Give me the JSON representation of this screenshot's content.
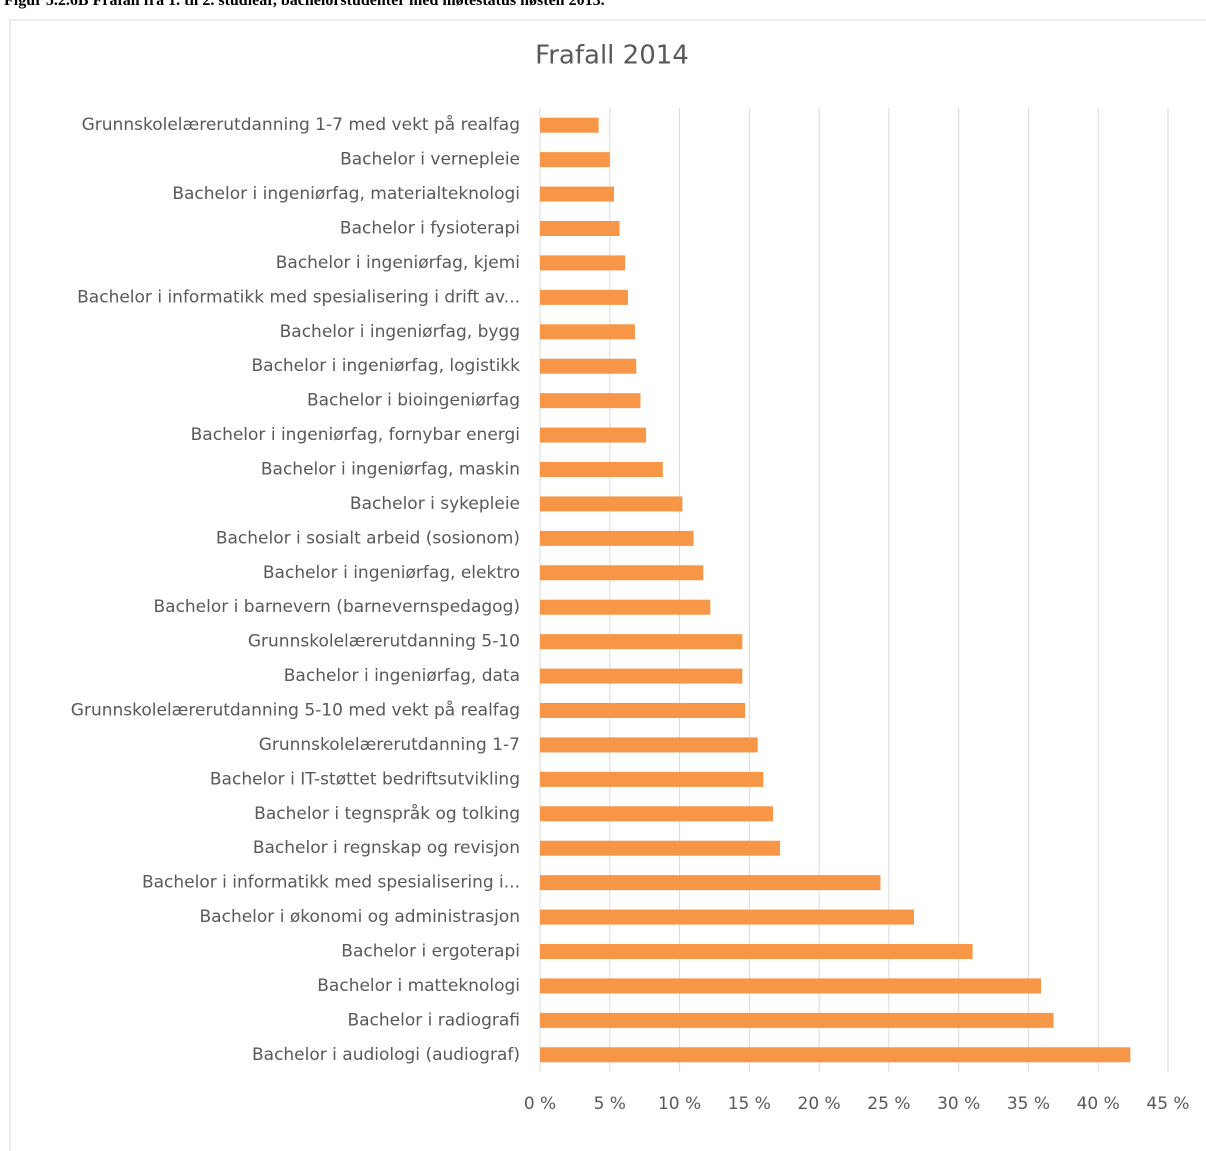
{
  "caption": "Figur 5.2.6B Frafall fra 1. til 2. studieår, bachelorstudenter med møtestatus høsten 2013.",
  "chart_data": {
    "type": "bar",
    "orientation": "horizontal",
    "title": "Frafall 2014",
    "categories": [
      "Grunnskolelærerutdanning 1-7 med vekt på realfag",
      "Bachelor i vernepleie",
      "Bachelor i ingeniørfag, materialteknologi",
      "Bachelor i fysioterapi",
      "Bachelor i ingeniørfag, kjemi",
      "Bachelor i informatikk med spesialisering i drift av...",
      "Bachelor i ingeniørfag, bygg",
      "Bachelor i ingeniørfag, logistikk",
      "Bachelor i bioingeniørfag",
      "Bachelor i ingeniørfag, fornybar energi",
      "Bachelor i ingeniørfag, maskin",
      "Bachelor i sykepleie",
      "Bachelor i sosialt arbeid (sosionom)",
      "Bachelor i ingeniørfag, elektro",
      "Bachelor i barnevern (barnevernspedagog)",
      "Grunnskolelærerutdanning 5-10",
      "Bachelor i ingeniørfag, data",
      "Grunnskolelærerutdanning 5-10 med vekt på realfag",
      "Grunnskolelærerutdanning 1-7",
      "Bachelor i IT-støttet bedriftsutvikling",
      "Bachelor i tegnspråk og tolking",
      "Bachelor i regnskap og revisjon",
      "Bachelor i informatikk med spesialisering i...",
      "Bachelor i økonomi og administrasjon",
      "Bachelor i ergoterapi",
      "Bachelor i matteknologi",
      "Bachelor i radiografi",
      "Bachelor i audiologi (audiograf)"
    ],
    "values": [
      4.2,
      5.0,
      5.3,
      5.7,
      6.1,
      6.3,
      6.8,
      6.9,
      7.2,
      7.6,
      8.8,
      10.2,
      11.0,
      11.7,
      12.2,
      14.5,
      14.5,
      14.7,
      15.6,
      16.0,
      16.7,
      17.2,
      24.4,
      26.8,
      31.0,
      35.9,
      36.8,
      42.3
    ],
    "color": "#f79646",
    "xlim": [
      0,
      45
    ],
    "xticks": [
      {
        "value": 0,
        "label": "0 %"
      },
      {
        "value": 5,
        "label": "5 %"
      },
      {
        "value": 10,
        "label": "10 %"
      },
      {
        "value": 15,
        "label": "15 %"
      },
      {
        "value": 20,
        "label": "20 %"
      },
      {
        "value": 25,
        "label": "25 %"
      },
      {
        "value": 30,
        "label": "30 %"
      },
      {
        "value": 35,
        "label": "35 %"
      },
      {
        "value": 40,
        "label": "40 %"
      },
      {
        "value": 45,
        "label": "45 %"
      }
    ],
    "grid": true
  }
}
